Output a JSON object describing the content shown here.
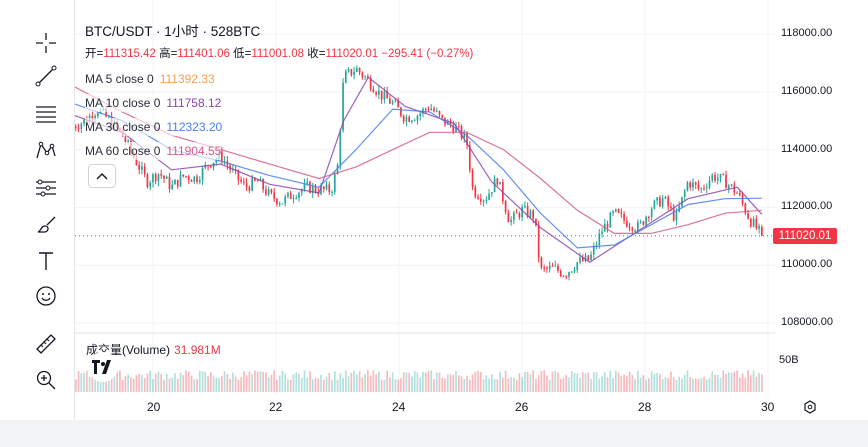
{
  "title": "BTC/USDT · 1小时 · 528BTC",
  "ohlc": {
    "open_label": "开",
    "open": "111315.42",
    "high_label": "高",
    "high": "111401.06",
    "low_label": "低",
    "low": "111001.08",
    "close_label": "收",
    "close": "111020.01",
    "change": "−295.41 (−0.27%)"
  },
  "indicators": [
    {
      "label": "MA 5 close 0",
      "value": "111392.33",
      "color": "#f6a04d"
    },
    {
      "label": "MA 10 close 0",
      "value": "111758.12",
      "color": "#8e44ad"
    },
    {
      "label": "MA 30 close 0",
      "value": "112323.20",
      "color": "#4a7ee8"
    },
    {
      "label": "MA 60 close 0",
      "value": "111904.55",
      "color": "#d65a8a"
    }
  ],
  "volume": {
    "label": "成交量(Volume)",
    "value": "31.981M",
    "axis_label": "50B"
  },
  "price_axis": [
    "118000.00",
    "116000.00",
    "114000.00",
    "112000.00",
    "110000.00",
    "108000.00"
  ],
  "last_price": "111020.01",
  "time_axis": [
    "20",
    "22",
    "24",
    "26",
    "28",
    "30"
  ],
  "colors": {
    "up": "#26a69a",
    "down": "#f23645"
  },
  "tools": [
    "crosshair-icon",
    "trendline-icon",
    "fib-retracement-icon",
    "pattern-icon",
    "prediction-icon",
    "brush-icon",
    "text-icon",
    "emoji-icon",
    "ruler-icon",
    "zoom-in-icon"
  ],
  "chart_data": {
    "type": "candlestick",
    "title": "BTC/USDT · 1小时 · 528BTC",
    "ylim": [
      107500,
      118500
    ],
    "x_ticks": [
      "20",
      "22",
      "24",
      "26",
      "28",
      "30"
    ],
    "close_path": [
      [
        18.7,
        114800
      ],
      [
        18.9,
        115000
      ],
      [
        19.1,
        115400
      ],
      [
        19.3,
        115000
      ],
      [
        19.5,
        114500
      ],
      [
        19.7,
        113700
      ],
      [
        19.9,
        112900
      ],
      [
        20.1,
        113200
      ],
      [
        20.3,
        112700
      ],
      [
        20.5,
        113100
      ],
      [
        20.7,
        113000
      ],
      [
        20.9,
        113500
      ],
      [
        21.1,
        113800
      ],
      [
        21.3,
        113200
      ],
      [
        21.5,
        112700
      ],
      [
        21.7,
        112900
      ],
      [
        21.9,
        112400
      ],
      [
        22.1,
        112200
      ],
      [
        22.3,
        112500
      ],
      [
        22.5,
        112700
      ],
      [
        22.7,
        112600
      ],
      [
        22.9,
        112600
      ],
      [
        23.0,
        113400
      ],
      [
        23.1,
        116500
      ],
      [
        23.3,
        116800
      ],
      [
        23.5,
        116400
      ],
      [
        23.7,
        115900
      ],
      [
        23.9,
        115600
      ],
      [
        24.1,
        115100
      ],
      [
        24.3,
        115200
      ],
      [
        24.5,
        115500
      ],
      [
        24.7,
        115000
      ],
      [
        24.9,
        114800
      ],
      [
        25.1,
        114300
      ],
      [
        25.2,
        112600
      ],
      [
        25.4,
        112300
      ],
      [
        25.6,
        113000
      ],
      [
        25.8,
        111500
      ],
      [
        26.0,
        111900
      ],
      [
        26.2,
        111700
      ],
      [
        26.3,
        109800
      ],
      [
        26.5,
        109900
      ],
      [
        26.7,
        109700
      ],
      [
        26.9,
        110100
      ],
      [
        27.1,
        110200
      ],
      [
        27.3,
        111200
      ],
      [
        27.5,
        111800
      ],
      [
        27.7,
        111500
      ],
      [
        27.9,
        111300
      ],
      [
        28.1,
        112000
      ],
      [
        28.3,
        112300
      ],
      [
        28.5,
        111600
      ],
      [
        28.7,
        112900
      ],
      [
        28.9,
        112600
      ],
      [
        29.1,
        113100
      ],
      [
        29.3,
        112900
      ],
      [
        29.5,
        112500
      ],
      [
        29.7,
        111600
      ],
      [
        29.9,
        111020
      ]
    ],
    "ma": [
      {
        "name": "MA 10",
        "color": "#8e44ad",
        "points": [
          [
            18.7,
            115200
          ],
          [
            19.5,
            114600
          ],
          [
            20.3,
            113300
          ],
          [
            21.1,
            113500
          ],
          [
            21.9,
            112800
          ],
          [
            22.7,
            112500
          ],
          [
            23.1,
            115000
          ],
          [
            23.5,
            116500
          ],
          [
            24.1,
            115500
          ],
          [
            24.9,
            114900
          ],
          [
            25.5,
            112900
          ],
          [
            26.3,
            111300
          ],
          [
            27.1,
            110100
          ],
          [
            27.9,
            111200
          ],
          [
            28.7,
            112300
          ],
          [
            29.5,
            112700
          ],
          [
            29.9,
            111760
          ]
        ]
      },
      {
        "name": "MA 30",
        "color": "#4a7ee8",
        "points": [
          [
            18.7,
            115600
          ],
          [
            19.5,
            115000
          ],
          [
            20.3,
            114000
          ],
          [
            21.1,
            113600
          ],
          [
            21.9,
            113100
          ],
          [
            22.7,
            112700
          ],
          [
            23.3,
            114000
          ],
          [
            23.9,
            115400
          ],
          [
            24.5,
            115300
          ],
          [
            25.1,
            114500
          ],
          [
            25.7,
            113300
          ],
          [
            26.3,
            111800
          ],
          [
            26.9,
            110600
          ],
          [
            27.5,
            110700
          ],
          [
            28.1,
            111400
          ],
          [
            28.7,
            112100
          ],
          [
            29.3,
            112300
          ],
          [
            29.9,
            112320
          ]
        ]
      },
      {
        "name": "MA 60",
        "color": "#d65a8a",
        "points": [
          [
            18.7,
            116200
          ],
          [
            19.5,
            115300
          ],
          [
            20.3,
            114500
          ],
          [
            21.1,
            114000
          ],
          [
            21.9,
            113500
          ],
          [
            22.7,
            113000
          ],
          [
            23.3,
            113400
          ],
          [
            23.9,
            114000
          ],
          [
            24.5,
            114600
          ],
          [
            25.1,
            114600
          ],
          [
            25.7,
            114000
          ],
          [
            26.3,
            113000
          ],
          [
            26.9,
            111900
          ],
          [
            27.5,
            111100
          ],
          [
            28.1,
            111100
          ],
          [
            28.7,
            111400
          ],
          [
            29.3,
            111800
          ],
          [
            29.9,
            111900
          ]
        ]
      }
    ],
    "volume_label": "成交量(Volume)",
    "last_volume": "31.981M"
  }
}
